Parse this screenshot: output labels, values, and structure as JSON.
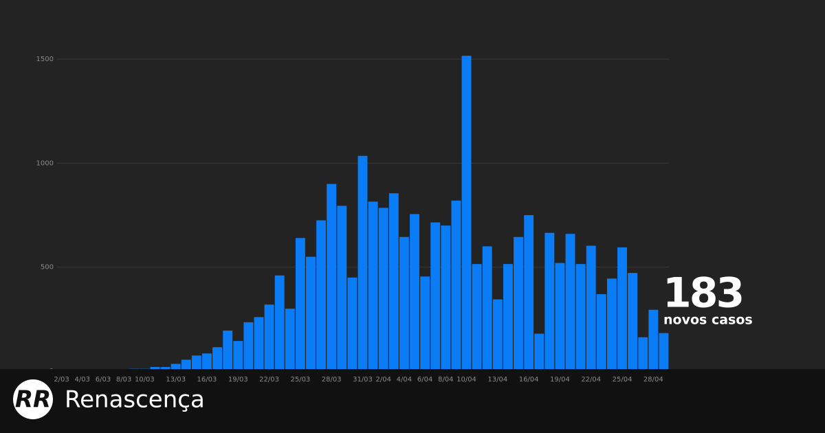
{
  "chart_data": {
    "type": "bar",
    "categories": [
      "2/03",
      null,
      "4/03",
      null,
      "6/03",
      null,
      "8/03",
      null,
      "10/03",
      null,
      null,
      "13/03",
      null,
      null,
      "16/03",
      null,
      null,
      "19/03",
      null,
      null,
      "22/03",
      null,
      null,
      "25/03",
      null,
      null,
      "28/03",
      null,
      null,
      "31/03",
      null,
      "2/04",
      null,
      "4/04",
      null,
      "6/04",
      null,
      "8/04",
      null,
      "10/04",
      null,
      null,
      "13/04",
      null,
      null,
      "16/04",
      null,
      null,
      "19/04",
      null,
      null,
      "22/04",
      null,
      null,
      "25/04",
      null,
      null,
      "28/04",
      null
    ],
    "values": [
      0,
      0,
      2,
      2,
      4,
      4,
      8,
      11,
      11,
      20,
      20,
      35,
      55,
      75,
      85,
      115,
      195,
      145,
      235,
      260,
      320,
      460,
      300,
      640,
      550,
      725,
      900,
      795,
      450,
      1035,
      815,
      785,
      855,
      645,
      755,
      455,
      715,
      700,
      820,
      1516,
      515,
      600,
      345,
      515,
      645,
      750,
      180,
      665,
      520,
      660,
      515,
      603,
      370,
      445,
      595,
      472,
      163,
      295,
      183
    ],
    "color": "#0a7cf6",
    "ylim": [
      0,
      1500
    ],
    "yticks": [
      0,
      500,
      1000,
      1500
    ],
    "grid": true,
    "annotation": {
      "number": "183",
      "text": "novos casos"
    }
  },
  "brand": "Renascença"
}
